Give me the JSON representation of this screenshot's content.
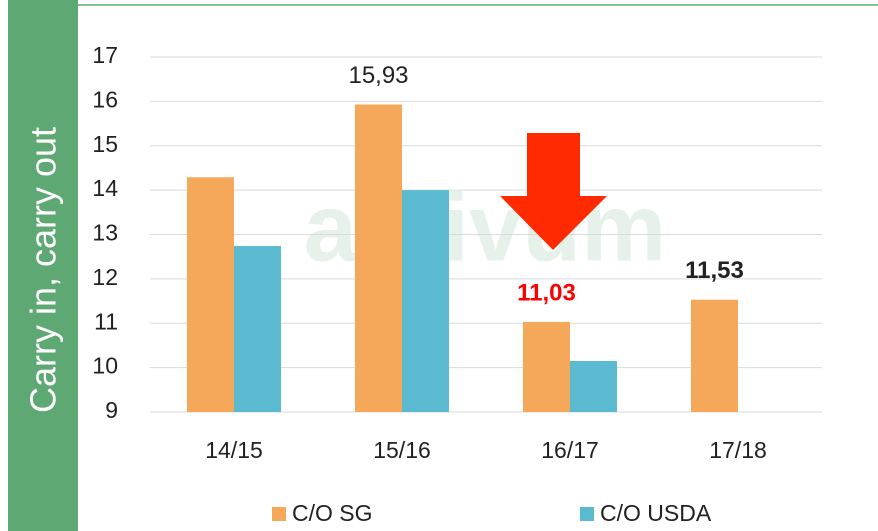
{
  "chart_data": {
    "type": "bar",
    "ylabel": "Carry in, carry out",
    "watermark": "astivum",
    "categories": [
      "14/15",
      "15/16",
      "16/17",
      "17/18"
    ],
    "series": [
      {
        "name": "C/O SG",
        "color": "#f5a85a",
        "values": [
          14.29,
          15.93,
          11.03,
          11.53
        ],
        "value_labels": [
          null,
          "15,93",
          "11,03",
          "11,53"
        ],
        "value_label_colors": [
          null,
          "#222222",
          "#ff0000",
          "#222222"
        ],
        "value_label_bold": [
          null,
          false,
          true,
          true
        ]
      },
      {
        "name": "C/O USDA",
        "color": "#5bbad0",
        "values": [
          12.74,
          14.0,
          10.15,
          null
        ]
      }
    ],
    "ylim": [
      9,
      17
    ],
    "yticks": [
      9,
      10,
      11,
      12,
      13,
      14,
      15,
      16,
      17
    ],
    "grid": true,
    "legend": "bottom"
  }
}
